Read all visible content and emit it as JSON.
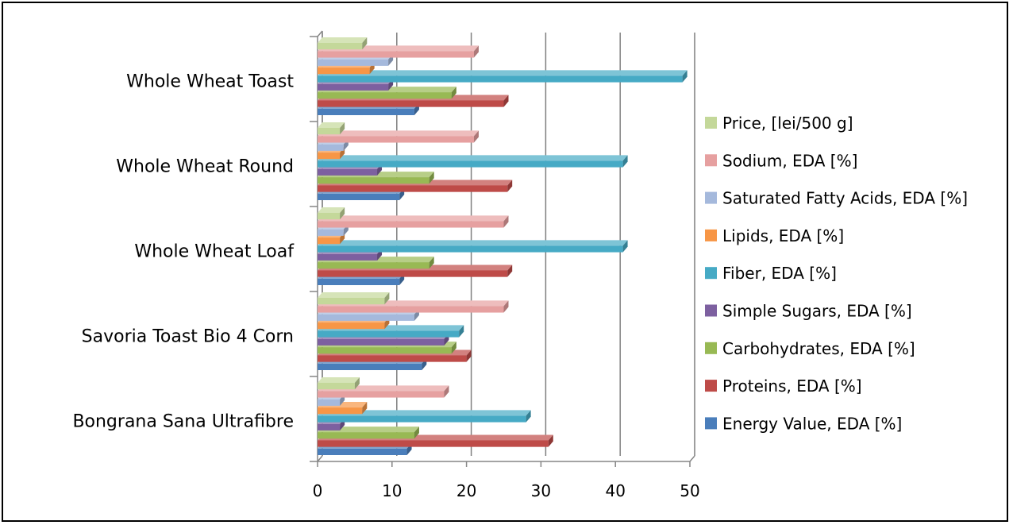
{
  "chart_data": {
    "type": "bar",
    "orientation": "horizontal",
    "style": "3d",
    "title": "",
    "xlabel": "",
    "ylabel": "",
    "xlim": [
      0,
      50
    ],
    "x_ticks": [
      "0",
      "10",
      "20",
      "30",
      "40",
      "50"
    ],
    "grid": "vertical major gridlines",
    "legend_position": "right",
    "categories": [
      "Bongrana Sana Ultrafibre",
      "Savoria Toast Bio 4 Corn",
      "Whole Wheat Loaf",
      "Whole Wheat Round",
      "Whole Wheat Toast"
    ],
    "series": [
      {
        "name": "Energy Value, EDA [%]",
        "color": "#4a7ebb",
        "values": [
          12,
          14,
          11,
          11,
          13
        ]
      },
      {
        "name": "Proteins, EDA [%]",
        "color": "#be4b48",
        "values": [
          31,
          20,
          25.5,
          25.5,
          25
        ]
      },
      {
        "name": "Carbohydrates, EDA [%]",
        "color": "#98b954",
        "values": [
          13,
          18,
          15,
          15,
          18
        ]
      },
      {
        "name": "Simple Sugars, EDA [%]",
        "color": "#7d60a0",
        "values": [
          3,
          17,
          8,
          8,
          9.5
        ]
      },
      {
        "name": "Fiber, EDA [%]",
        "color": "#46aac5",
        "values": [
          28,
          19,
          41,
          41,
          49
        ]
      },
      {
        "name": "Lipids, EDA [%]",
        "color": "#f79646",
        "values": [
          6,
          9,
          3,
          3,
          7
        ]
      },
      {
        "name": "Saturated Fatty Acids, EDA [%]",
        "color": "#a5b9dc",
        "values": [
          3,
          13,
          3.5,
          3.5,
          9.5
        ]
      },
      {
        "name": "Sodium, EDA [%]",
        "color": "#e6a0a0",
        "values": [
          17,
          25,
          25,
          21,
          21
        ]
      },
      {
        "name": "Price, [lei/500 g]",
        "color": "#c4d89a",
        "values": [
          5,
          9,
          3,
          3,
          6
        ]
      }
    ]
  }
}
